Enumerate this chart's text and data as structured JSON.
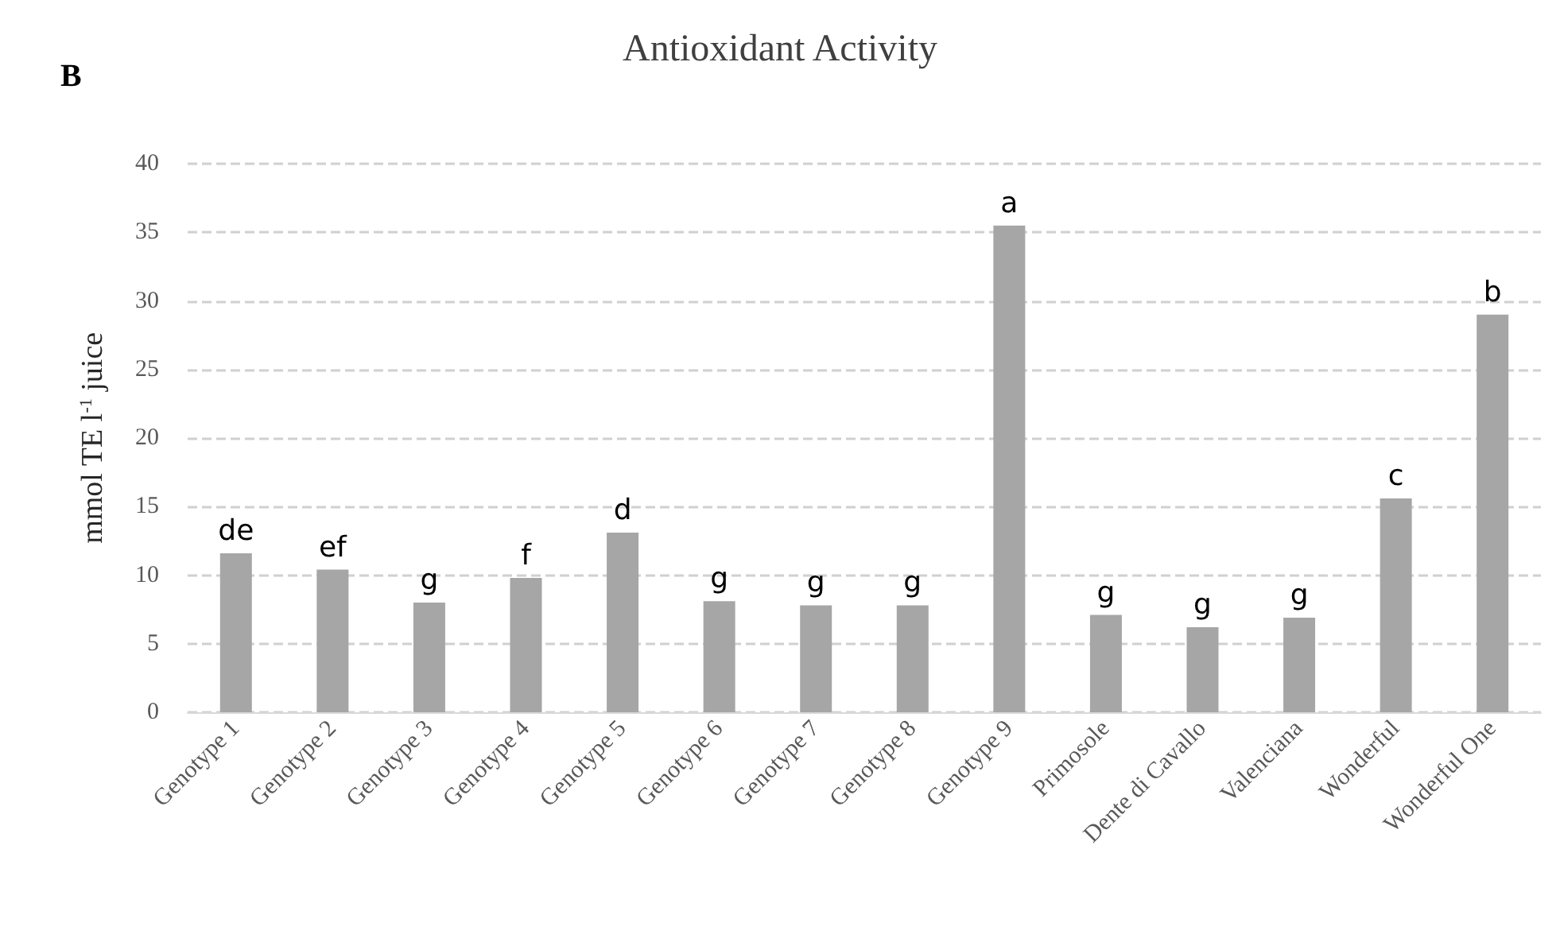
{
  "chart_data": {
    "type": "bar",
    "title": "Antioxidant Activity",
    "ylabel": "mmol TE l$^{-1}$ juice",
    "annotations": [
      "B"
    ],
    "categories": [
      "Genotype 1",
      "Genotype 2",
      "Genotype 3",
      "Genotype 4",
      "Genotype 5",
      "Genotype 6",
      "Genotype 7",
      "Genotype 8",
      "Genotype 9",
      "Primosole",
      "Dente di Cavallo",
      "Valenciana",
      "Wonderful",
      "Wonderful One"
    ],
    "values": [
      11.6,
      10.4,
      8.0,
      9.8,
      13.1,
      8.1,
      7.8,
      7.8,
      35.5,
      7.1,
      6.2,
      6.9,
      15.6,
      29.0
    ],
    "value_labels": [
      "de",
      "ef",
      "g",
      "f",
      "d",
      "g",
      "g",
      "g",
      "a",
      "g",
      "g",
      "g",
      "c",
      "b"
    ],
    "color": "#a6a6a6",
    "ylim": [
      0,
      40
    ],
    "yticks": [
      0,
      5,
      10,
      15,
      20,
      25,
      30,
      35,
      40
    ],
    "grid": "y"
  }
}
